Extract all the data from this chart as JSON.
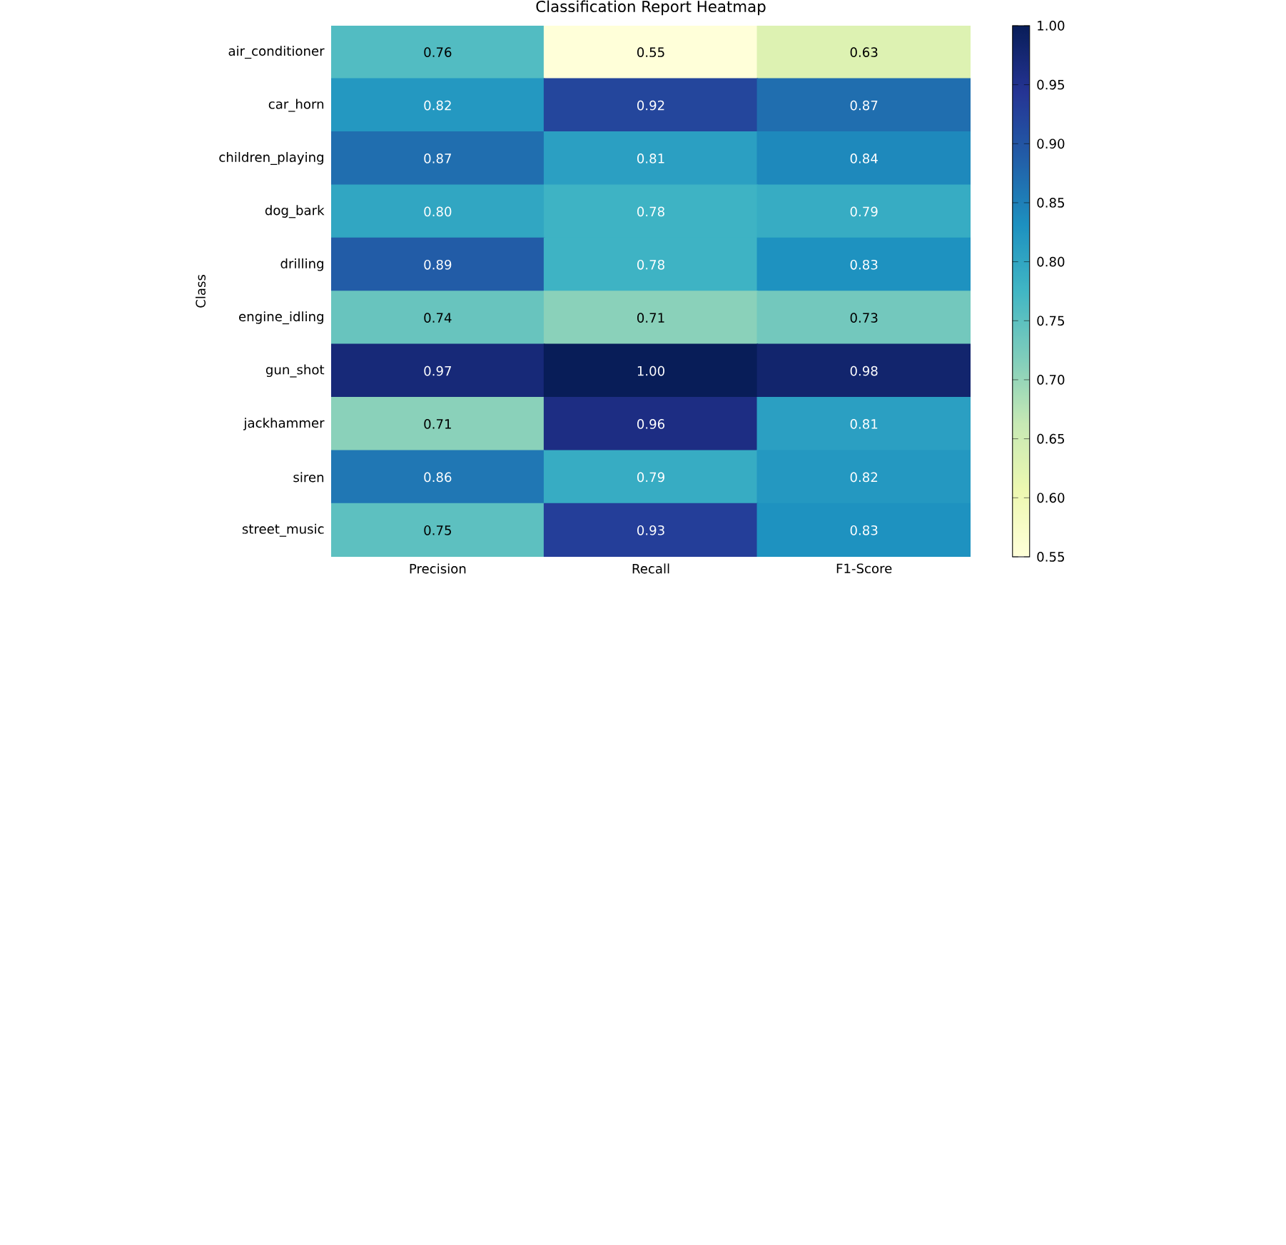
{
  "chart_data": {
    "type": "heatmap",
    "title": "Classification Report Heatmap",
    "ylabel": "Class",
    "categories": [
      "Precision",
      "Recall",
      "F1-Score"
    ],
    "y_categories": [
      "air_conditioner",
      "car_horn",
      "children_playing",
      "dog_bark",
      "drilling",
      "engine_idling",
      "gun_shot",
      "jackhammer",
      "siren",
      "street_music"
    ],
    "cells": [
      [
        0.76,
        0.55,
        0.63
      ],
      [
        0.82,
        0.92,
        0.87
      ],
      [
        0.87,
        0.81,
        0.84
      ],
      [
        0.8,
        0.78,
        0.79
      ],
      [
        0.89,
        0.78,
        0.83
      ],
      [
        0.74,
        0.71,
        0.73
      ],
      [
        0.97,
        1.0,
        0.98
      ],
      [
        0.71,
        0.96,
        0.81
      ],
      [
        0.86,
        0.79,
        0.82
      ],
      [
        0.75,
        0.93,
        0.83
      ]
    ],
    "cell_labels": [
      [
        "0.76",
        "0.55",
        "0.63"
      ],
      [
        "0.82",
        "0.92",
        "0.87"
      ],
      [
        "0.87",
        "0.81",
        "0.84"
      ],
      [
        "0.80",
        "0.78",
        "0.79"
      ],
      [
        "0.89",
        "0.78",
        "0.83"
      ],
      [
        "0.74",
        "0.71",
        "0.73"
      ],
      [
        "0.97",
        "1.00",
        "0.98"
      ],
      [
        "0.71",
        "0.96",
        "0.81"
      ],
      [
        "0.86",
        "0.79",
        "0.82"
      ],
      [
        "0.75",
        "0.93",
        "0.83"
      ]
    ],
    "clim": [
      0.55,
      1.0
    ],
    "cticks": [
      {
        "value": 0.55,
        "label": "0.55"
      },
      {
        "value": 0.6,
        "label": "0.60"
      },
      {
        "value": 0.65,
        "label": "0.65"
      },
      {
        "value": 0.7,
        "label": "0.70"
      },
      {
        "value": 0.75,
        "label": "0.75"
      },
      {
        "value": 0.8,
        "label": "0.80"
      },
      {
        "value": 0.85,
        "label": "0.85"
      },
      {
        "value": 0.9,
        "label": "0.90"
      },
      {
        "value": 0.95,
        "label": "0.95"
      },
      {
        "value": 1.0,
        "label": "1.00"
      }
    ]
  }
}
